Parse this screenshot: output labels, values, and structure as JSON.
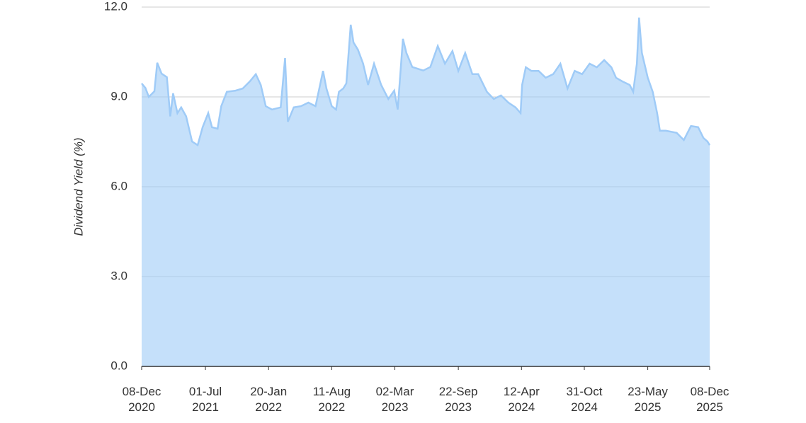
{
  "chart_data": {
    "type": "area",
    "y_label": "Dividend Yield (%)",
    "color": "#9fcbf7",
    "grid": true,
    "x": [
      "2020-12-08",
      "2020-12-20",
      "2020-12-31",
      "2021-01-18",
      "2021-01-27",
      "2021-02-10",
      "2021-02-27",
      "2021-03-10",
      "2021-03-19",
      "2021-04-02",
      "2021-04-14",
      "2021-04-30",
      "2021-05-19",
      "2021-06-06",
      "2021-06-22",
      "2021-07-10",
      "2021-07-22",
      "2021-08-09",
      "2021-08-21",
      "2021-09-08",
      "2021-10-06",
      "2021-10-29",
      "2021-11-21",
      "2021-12-10",
      "2021-12-26",
      "2022-01-11",
      "2022-01-31",
      "2022-02-28",
      "2022-03-14",
      "2022-03-23",
      "2022-04-11",
      "2022-05-04",
      "2022-05-28",
      "2022-06-20",
      "2022-07-14",
      "2022-07-25",
      "2022-08-11",
      "2022-08-25",
      "2022-09-03",
      "2022-09-17",
      "2022-09-27",
      "2022-10-11",
      "2022-10-20",
      "2022-11-03",
      "2022-11-20",
      "2022-12-06",
      "2022-12-25",
      "2023-01-17",
      "2023-02-09",
      "2023-02-28",
      "2023-03-11",
      "2023-03-28",
      "2023-04-08",
      "2023-04-27",
      "2023-06-01",
      "2023-06-24",
      "2023-07-18",
      "2023-08-10",
      "2023-09-03",
      "2023-09-22",
      "2023-10-14",
      "2023-11-06",
      "2023-11-25",
      "2023-12-23",
      "2024-01-14",
      "2024-02-06",
      "2024-03-01",
      "2024-03-24",
      "2024-04-09",
      "2024-04-14",
      "2024-04-26",
      "2024-05-14",
      "2024-06-06",
      "2024-06-29",
      "2024-07-23",
      "2024-08-15",
      "2024-09-07",
      "2024-09-30",
      "2024-10-24",
      "2024-11-17",
      "2024-12-10",
      "2025-01-03",
      "2025-01-26",
      "2025-02-10",
      "2025-03-02",
      "2025-03-26",
      "2025-04-06",
      "2025-04-18",
      "2025-04-25",
      "2025-05-04",
      "2025-05-23",
      "2025-06-08",
      "2025-06-22",
      "2025-07-01",
      "2025-07-20",
      "2025-08-24",
      "2025-09-16",
      "2025-10-09",
      "2025-11-01",
      "2025-11-18",
      "2025-12-01",
      "2025-12-08"
    ],
    "values": [
      9.45,
      9.3,
      9.0,
      9.19,
      10.14,
      9.78,
      9.66,
      8.35,
      9.12,
      8.46,
      8.65,
      8.35,
      7.51,
      7.39,
      7.99,
      8.46,
      7.99,
      7.94,
      8.69,
      9.17,
      9.21,
      9.28,
      9.52,
      9.76,
      9.4,
      8.69,
      8.58,
      8.65,
      10.3,
      8.17,
      8.65,
      8.69,
      8.81,
      8.69,
      9.87,
      9.28,
      8.69,
      8.58,
      9.17,
      9.28,
      9.45,
      11.41,
      10.82,
      10.58,
      10.11,
      9.4,
      10.11,
      9.4,
      8.93,
      9.21,
      8.58,
      10.94,
      10.47,
      10.0,
      9.88,
      10.0,
      10.7,
      10.11,
      10.53,
      9.87,
      10.47,
      9.76,
      9.76,
      9.17,
      8.93,
      9.05,
      8.81,
      8.65,
      8.46,
      9.4,
      9.99,
      9.87,
      9.87,
      9.64,
      9.76,
      10.11,
      9.28,
      9.87,
      9.76,
      10.11,
      9.99,
      10.23,
      9.99,
      9.64,
      9.52,
      9.4,
      9.17,
      10.11,
      11.65,
      10.47,
      9.64,
      9.17,
      8.46,
      7.87,
      7.87,
      7.8,
      7.56,
      8.03,
      7.99,
      7.63,
      7.51,
      7.39
    ],
    "xlim": [
      "2020-12-08",
      "2025-12-08"
    ],
    "xticks": [
      {
        "value": "2020-12-08",
        "label": "08-Dec\n2020"
      },
      {
        "value": "2021-07-01",
        "label": "01-Jul\n2021"
      },
      {
        "value": "2022-01-20",
        "label": "20-Jan\n2022"
      },
      {
        "value": "2022-08-11",
        "label": "11-Aug\n2022"
      },
      {
        "value": "2023-03-02",
        "label": "02-Mar\n2023"
      },
      {
        "value": "2023-09-22",
        "label": "22-Sep\n2023"
      },
      {
        "value": "2024-04-12",
        "label": "12-Apr\n2024"
      },
      {
        "value": "2024-10-31",
        "label": "31-Oct\n2024"
      },
      {
        "value": "2025-05-23",
        "label": "23-May\n2025"
      },
      {
        "value": "2025-12-08",
        "label": "08-Dec\n2025"
      }
    ],
    "ylim": [
      0,
      12
    ],
    "yticks": [
      {
        "value": 0,
        "label": "0.0"
      },
      {
        "value": 3,
        "label": "3.0"
      },
      {
        "value": 6,
        "label": "6.0"
      },
      {
        "value": 9,
        "label": "9.0"
      },
      {
        "value": 12,
        "label": "12.0"
      }
    ]
  }
}
